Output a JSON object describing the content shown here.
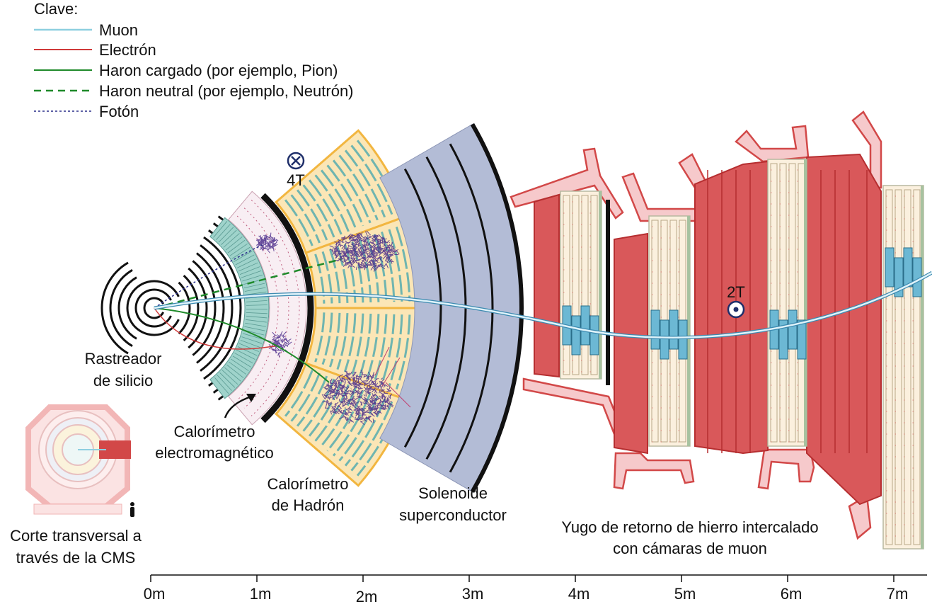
{
  "legend": {
    "title": "Clave:",
    "items": [
      "Muon",
      "Electrón",
      "Haron cargado (por ejemplo, Pion)",
      "Haron neutral (por ejemplo, Neutrón)",
      "Fotón"
    ]
  },
  "fields": [
    "4T",
    "2T"
  ],
  "labels": [
    {
      "lines": [
        "Rastreador",
        "de silicio"
      ]
    },
    {
      "lines": [
        "Calorímetro",
        "electromagnético"
      ]
    },
    {
      "lines": [
        "Calorímetro",
        "de Hadrón"
      ]
    },
    {
      "lines": [
        "Solenoide",
        "superconductor"
      ]
    },
    {
      "lines": [
        "Yugo de retorno de hierro intercalado",
        "con cámaras de muon"
      ]
    },
    {
      "lines": [
        "Corte transversal a",
        "través de la CMS"
      ]
    }
  ],
  "scale": [
    "0m",
    "1m",
    "2m",
    "3m",
    "4m",
    "5m",
    "6m",
    "7m"
  ]
}
